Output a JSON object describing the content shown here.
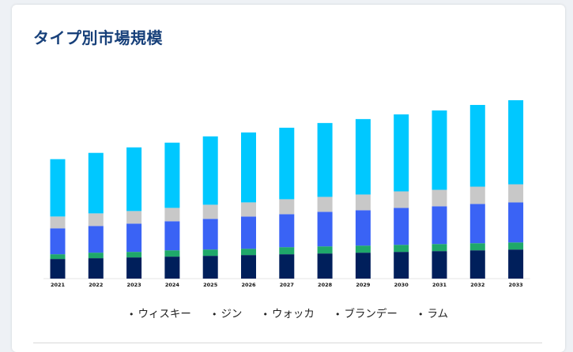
{
  "title": "タイプ別市場規模",
  "colors": {
    "title": "#17407a",
    "ウィスキー": "#001f5b",
    "ジン": "#1fa86a",
    "ウォッカ": "#3a63f5",
    "ブランデー": "#c8c8c8",
    "ラム": "#00c8ff"
  },
  "legend": [
    {
      "label": "ウィスキー"
    },
    {
      "label": "ジン"
    },
    {
      "label": "ウォッカ"
    },
    {
      "label": "ブランデー"
    },
    {
      "label": "ラム"
    }
  ],
  "chart_data": {
    "type": "bar",
    "stacked": true,
    "title": "タイプ別市場規模",
    "xlabel": "",
    "ylabel": "",
    "y_axis_visible": false,
    "grid": false,
    "legend_position": "bottom",
    "ylim": [
      0,
      230
    ],
    "categories": [
      "2021",
      "2022",
      "2023",
      "2024",
      "2025",
      "2026",
      "2027",
      "2028",
      "2029",
      "2030",
      "2031",
      "2032",
      "2033"
    ],
    "series": [
      {
        "name": "ウィスキー",
        "color": "#001f5b",
        "values": [
          25,
          26,
          27,
          28,
          29,
          30,
          31,
          32,
          33,
          34,
          35,
          36,
          37
        ]
      },
      {
        "name": "ジン",
        "color": "#1fa86a",
        "values": [
          6,
          7,
          7,
          8,
          8,
          8,
          9,
          9,
          9,
          9,
          9,
          9,
          9
        ]
      },
      {
        "name": "ウォッカ",
        "color": "#3a63f5",
        "values": [
          33,
          34,
          36,
          37,
          39,
          41,
          42,
          44,
          45,
          47,
          48,
          50,
          51
        ]
      },
      {
        "name": "ブランデー",
        "color": "#c8c8c8",
        "values": [
          15,
          16,
          16,
          17,
          18,
          18,
          19,
          19,
          20,
          21,
          21,
          22,
          23
        ]
      },
      {
        "name": "ラム",
        "color": "#00c8ff",
        "values": [
          73,
          77,
          81,
          83,
          87,
          89,
          91,
          94,
          96,
          98,
          101,
          104,
          107
        ]
      }
    ]
  }
}
